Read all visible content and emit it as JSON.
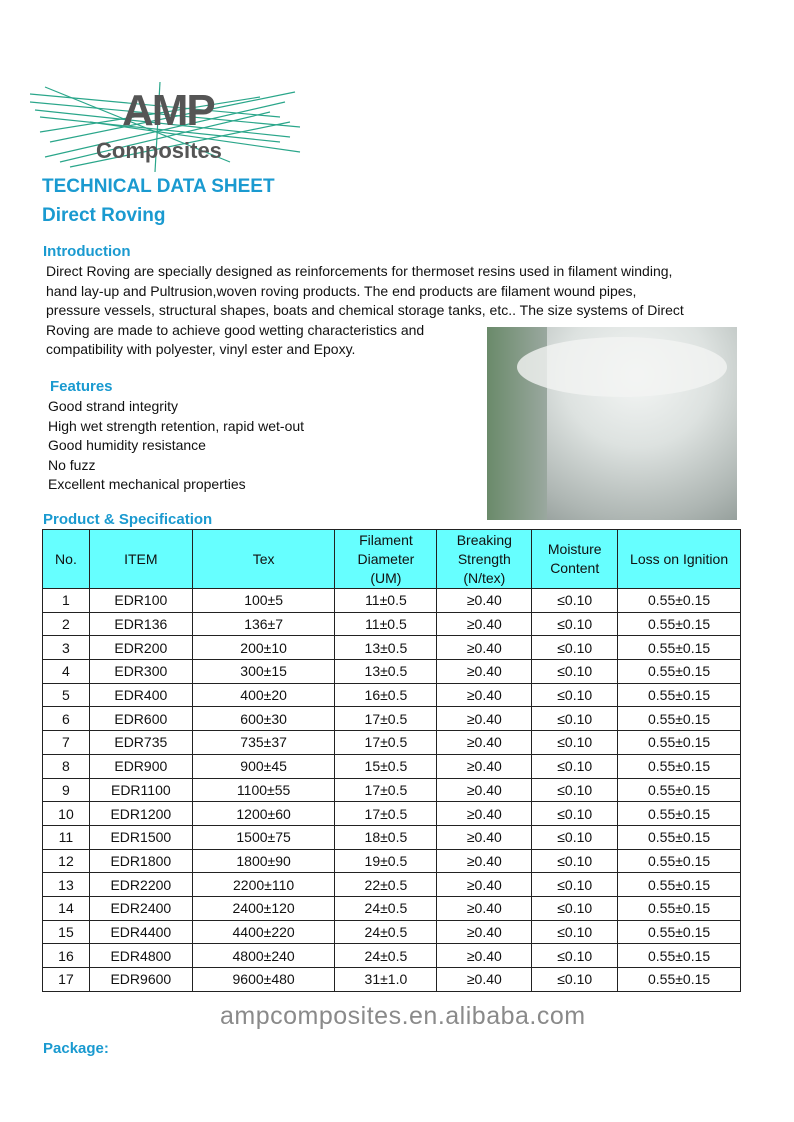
{
  "logo": {
    "line1": "AMP",
    "line2": "Composites",
    "line_color": "#2aa68a",
    "text_color": "#555555"
  },
  "title": "TECHNICAL DATA SHEET",
  "subtitle": "Direct Roving",
  "intro": {
    "heading": "Introduction",
    "lines": [
      "Direct Roving are specially designed as reinforcements for thermoset resins used in filament winding,",
      "hand lay-up and Pultrusion,woven roving products. The end products are filament wound pipes,",
      "pressure vessels, structural shapes, boats and chemical storage tanks, etc.. The size systems of Direct",
      "Roving are made to achieve good wetting characteristics and",
      "compatibility with polyester, vinyl ester and Epoxy."
    ]
  },
  "features": {
    "heading": "Features",
    "items": [
      "Good strand integrity",
      "High wet strength retention, rapid wet-out",
      "Good humidity resistance",
      "No fuzz",
      "Excellent mechanical properties"
    ]
  },
  "spec": {
    "heading": "Product & Specification",
    "header_color": "#66ffff",
    "columns": [
      "No.",
      "ITEM",
      "Tex",
      "Filament Diameter (UM)",
      "Breaking Strength (N/tex)",
      "Moisture Content",
      "Loss on Ignition"
    ],
    "rows": [
      [
        "1",
        "EDR100",
        "100±5",
        "11±0.5",
        "≥0.40",
        "≤0.10",
        "0.55±0.15"
      ],
      [
        "2",
        "EDR136",
        "136±7",
        "11±0.5",
        "≥0.40",
        "≤0.10",
        "0.55±0.15"
      ],
      [
        "3",
        "EDR200",
        "200±10",
        "13±0.5",
        "≥0.40",
        "≤0.10",
        "0.55±0.15"
      ],
      [
        "4",
        "EDR300",
        "300±15",
        "13±0.5",
        "≥0.40",
        "≤0.10",
        "0.55±0.15"
      ],
      [
        "5",
        "EDR400",
        "400±20",
        "16±0.5",
        "≥0.40",
        "≤0.10",
        "0.55±0.15"
      ],
      [
        "6",
        "EDR600",
        "600±30",
        "17±0.5",
        "≥0.40",
        "≤0.10",
        "0.55±0.15"
      ],
      [
        "7",
        "EDR735",
        "735±37",
        "17±0.5",
        "≥0.40",
        "≤0.10",
        "0.55±0.15"
      ],
      [
        "8",
        "EDR900",
        "900±45",
        "15±0.5",
        "≥0.40",
        "≤0.10",
        "0.55±0.15"
      ],
      [
        "9",
        "EDR1100",
        "1100±55",
        "17±0.5",
        "≥0.40",
        "≤0.10",
        "0.55±0.15"
      ],
      [
        "10",
        "EDR1200",
        "1200±60",
        "17±0.5",
        "≥0.40",
        "≤0.10",
        "0.55±0.15"
      ],
      [
        "11",
        "EDR1500",
        "1500±75",
        "18±0.5",
        "≥0.40",
        "≤0.10",
        "0.55±0.15"
      ],
      [
        "12",
        "EDR1800",
        "1800±90",
        "19±0.5",
        "≥0.40",
        "≤0.10",
        "0.55±0.15"
      ],
      [
        "13",
        "EDR2200",
        "2200±110",
        "22±0.5",
        "≥0.40",
        "≤0.10",
        "0.55±0.15"
      ],
      [
        "14",
        "EDR2400",
        "2400±120",
        "24±0.5",
        "≥0.40",
        "≤0.10",
        "0.55±0.15"
      ],
      [
        "15",
        "EDR4400",
        "4400±220",
        "24±0.5",
        "≥0.40",
        "≤0.10",
        "0.55±0.15"
      ],
      [
        "16",
        "EDR4800",
        "4800±240",
        "24±0.5",
        "≥0.40",
        "≤0.10",
        "0.55±0.15"
      ],
      [
        "17",
        "EDR9600",
        "9600±480",
        "31±1.0",
        "≥0.40",
        "≤0.10",
        "0.55±0.15"
      ]
    ]
  },
  "watermark": "ampcomposites.en.alibaba.com",
  "package": {
    "heading": "Package:"
  },
  "accent_color": "#1a9ad0"
}
